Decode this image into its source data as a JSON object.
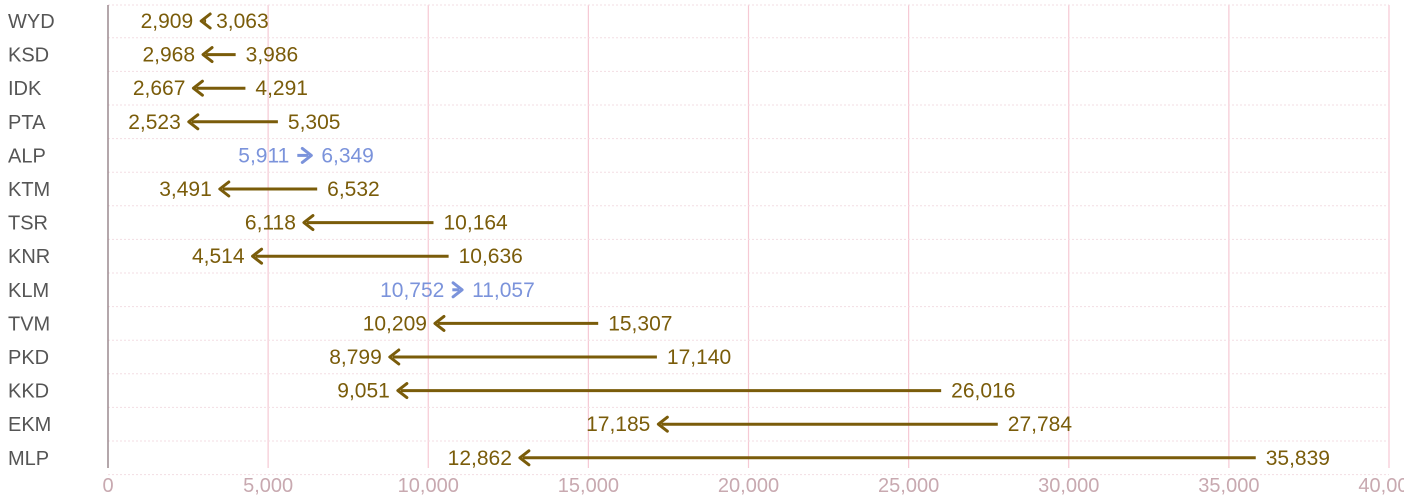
{
  "chart_data": {
    "type": "arrow",
    "title": "",
    "xlabel": "",
    "ylabel": "",
    "xlim": [
      0,
      40000
    ],
    "x_ticks": [
      0,
      5000,
      10000,
      15000,
      20000,
      25000,
      30000,
      35000,
      40000
    ],
    "x_tick_labels": [
      "0",
      "5,000",
      "10,000",
      "15,000",
      "20,000",
      "25,000",
      "30,000",
      "35,000",
      "40,000"
    ],
    "grid": true,
    "colors": {
      "decrease": "#7a5c0a",
      "increase": "#7b93db",
      "grid": "#f6c9d4",
      "axis": "#9c8a8f"
    },
    "categories": [
      "WYD",
      "KSD",
      "IDK",
      "PTA",
      "ALP",
      "KTM",
      "TSR",
      "KNR",
      "KLM",
      "TVM",
      "PKD",
      "KKD",
      "EKM",
      "MLP"
    ],
    "series": [
      {
        "values_start": [
          3063,
          3986,
          4291,
          5305,
          5911,
          6532,
          10164,
          10636,
          10752,
          15307,
          17140,
          26016,
          27784,
          35839
        ]
      },
      {
        "values_end": [
          2909,
          2968,
          2667,
          2523,
          6349,
          3491,
          6118,
          4514,
          11057,
          10209,
          8799,
          9051,
          17185,
          12862
        ]
      }
    ],
    "start_labels": [
      "3,063",
      "3,986",
      "4,291",
      "5,305",
      "5,911",
      "6,532",
      "10,164",
      "10,636",
      "10,752",
      "15,307",
      "17,140",
      "26,016",
      "27,784",
      "35,839"
    ],
    "end_labels": [
      "2,909",
      "2,968",
      "2,667",
      "2,523",
      "6,349",
      "3,491",
      "6,118",
      "4,514",
      "11,057",
      "10,209",
      "8,799",
      "9,051",
      "17,185",
      "12,862"
    ]
  }
}
